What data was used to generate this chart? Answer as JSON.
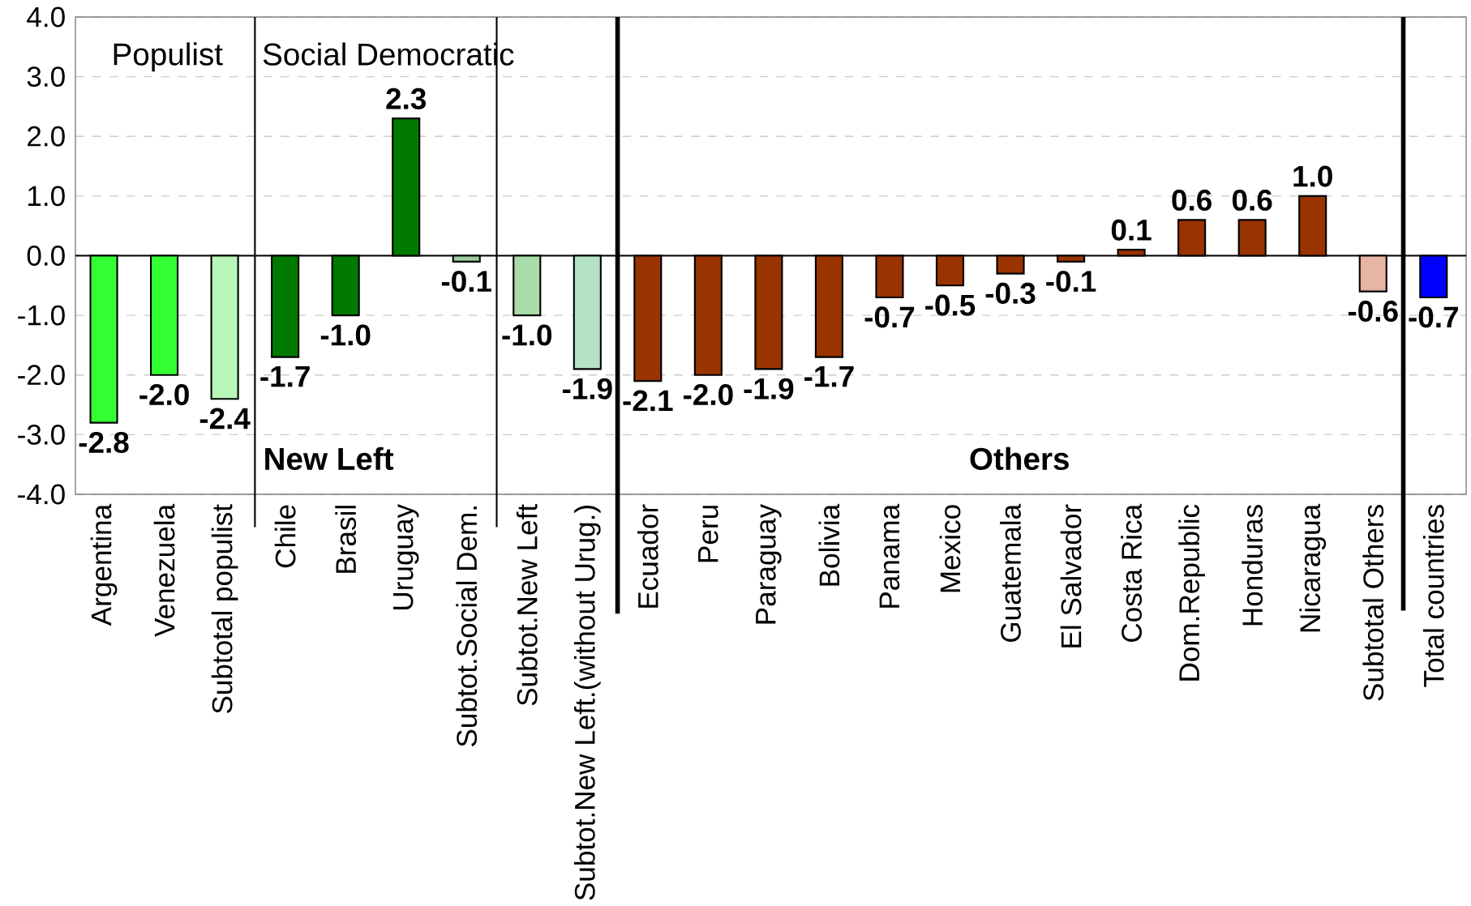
{
  "chart_data": {
    "type": "bar",
    "categories": [
      "Argentina",
      "Venezuela",
      "Subtotal populist",
      "Chile",
      "Brasil",
      "Uruguay",
      "Subtot.Social Dem.",
      "Subtot.New Left",
      "Subtot.New Left.(without Urug.)",
      "Ecuador",
      "Peru",
      "Paraguay",
      "Bolivia",
      "Panama",
      "Mexico",
      "Guatemala",
      "El Salvador",
      "Costa Rica",
      "Dom.Republic",
      "Honduras",
      "Nicaragua",
      "Subtotal Others",
      "Total countries"
    ],
    "values": [
      -2.8,
      -2.0,
      -2.4,
      -1.7,
      -1.0,
      2.3,
      -0.1,
      -1.0,
      -1.9,
      -2.1,
      -2.0,
      -1.9,
      -1.7,
      -0.7,
      -0.5,
      -0.3,
      -0.1,
      0.1,
      0.6,
      0.6,
      1.0,
      -0.6,
      -0.7
    ],
    "colors": [
      "#33ff33",
      "#33ff33",
      "#b8f5b8",
      "#007a00",
      "#007a00",
      "#007a00",
      "#9ccc9c",
      "#a9dca9",
      "#b5e2c5",
      "#993300",
      "#993300",
      "#993300",
      "#993300",
      "#993300",
      "#993300",
      "#993300",
      "#993300",
      "#993300",
      "#993300",
      "#993300",
      "#993300",
      "#e8b4a4",
      "#0000ff"
    ],
    "value_labels": [
      "-2.8",
      "-2.0",
      "-2.4",
      "-1.7",
      "-1.0",
      "2.3",
      "-0.1",
      "-1.0",
      "-1.9",
      "-2.1",
      "-2.0",
      "-1.9",
      "-1.7",
      "-0.7",
      "-0.5",
      "-0.3",
      "-0.1",
      "0.1",
      "0.6",
      "0.6",
      "1.0",
      "-0.6",
      "-0.7"
    ],
    "ylim": [
      -4.0,
      4.0
    ],
    "yticks": [
      {
        "value": -4.0,
        "label": "-4.0"
      },
      {
        "value": -3.0,
        "label": "-3.0"
      },
      {
        "value": -2.0,
        "label": "-2.0"
      },
      {
        "value": -1.0,
        "label": "-1.0"
      },
      {
        "value": 0.0,
        "label": "0.0"
      },
      {
        "value": 1.0,
        "label": "1.0"
      },
      {
        "value": 2.0,
        "label": "2.0"
      },
      {
        "value": 3.0,
        "label": "3.0"
      },
      {
        "value": 4.0,
        "label": "4.0"
      }
    ],
    "grid": "y",
    "annotations": [
      "Populist",
      "Social Democratic",
      "New Left",
      "Others"
    ]
  }
}
